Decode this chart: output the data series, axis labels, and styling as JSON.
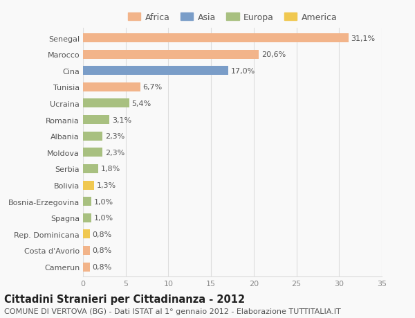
{
  "countries": [
    "Senegal",
    "Marocco",
    "Cina",
    "Tunisia",
    "Ucraina",
    "Romania",
    "Albania",
    "Moldova",
    "Serbia",
    "Bolivia",
    "Bosnia-Erzegovina",
    "Spagna",
    "Rep. Dominicana",
    "Costa d'Avorio",
    "Camerun"
  ],
  "values": [
    31.1,
    20.6,
    17.0,
    6.7,
    5.4,
    3.1,
    2.3,
    2.3,
    1.8,
    1.3,
    1.0,
    1.0,
    0.8,
    0.8,
    0.8
  ],
  "labels": [
    "31,1%",
    "20,6%",
    "17,0%",
    "6,7%",
    "5,4%",
    "3,1%",
    "2,3%",
    "2,3%",
    "1,8%",
    "1,3%",
    "1,0%",
    "1,0%",
    "0,8%",
    "0,8%",
    "0,8%"
  ],
  "continents": [
    "Africa",
    "Africa",
    "Asia",
    "Africa",
    "Europa",
    "Europa",
    "Europa",
    "Europa",
    "Europa",
    "America",
    "Europa",
    "Europa",
    "America",
    "Africa",
    "Africa"
  ],
  "colors": {
    "Africa": "#F2B48A",
    "Asia": "#7A9DC8",
    "Europa": "#A8C080",
    "America": "#F0C850"
  },
  "legend_order": [
    "Africa",
    "Asia",
    "Europa",
    "America"
  ],
  "xlim": [
    0,
    35
  ],
  "xticks": [
    0,
    5,
    10,
    15,
    20,
    25,
    30,
    35
  ],
  "title": "Cittadini Stranieri per Cittadinanza - 2012",
  "subtitle": "COMUNE DI VERTOVA (BG) - Dati ISTAT al 1° gennaio 2012 - Elaborazione TUTTITALIA.IT",
  "background_color": "#f9f9f9",
  "grid_color": "#dddddd",
  "bar_height": 0.55,
  "label_fontsize": 8,
  "ytick_fontsize": 8,
  "xtick_fontsize": 8,
  "title_fontsize": 10.5,
  "subtitle_fontsize": 8
}
